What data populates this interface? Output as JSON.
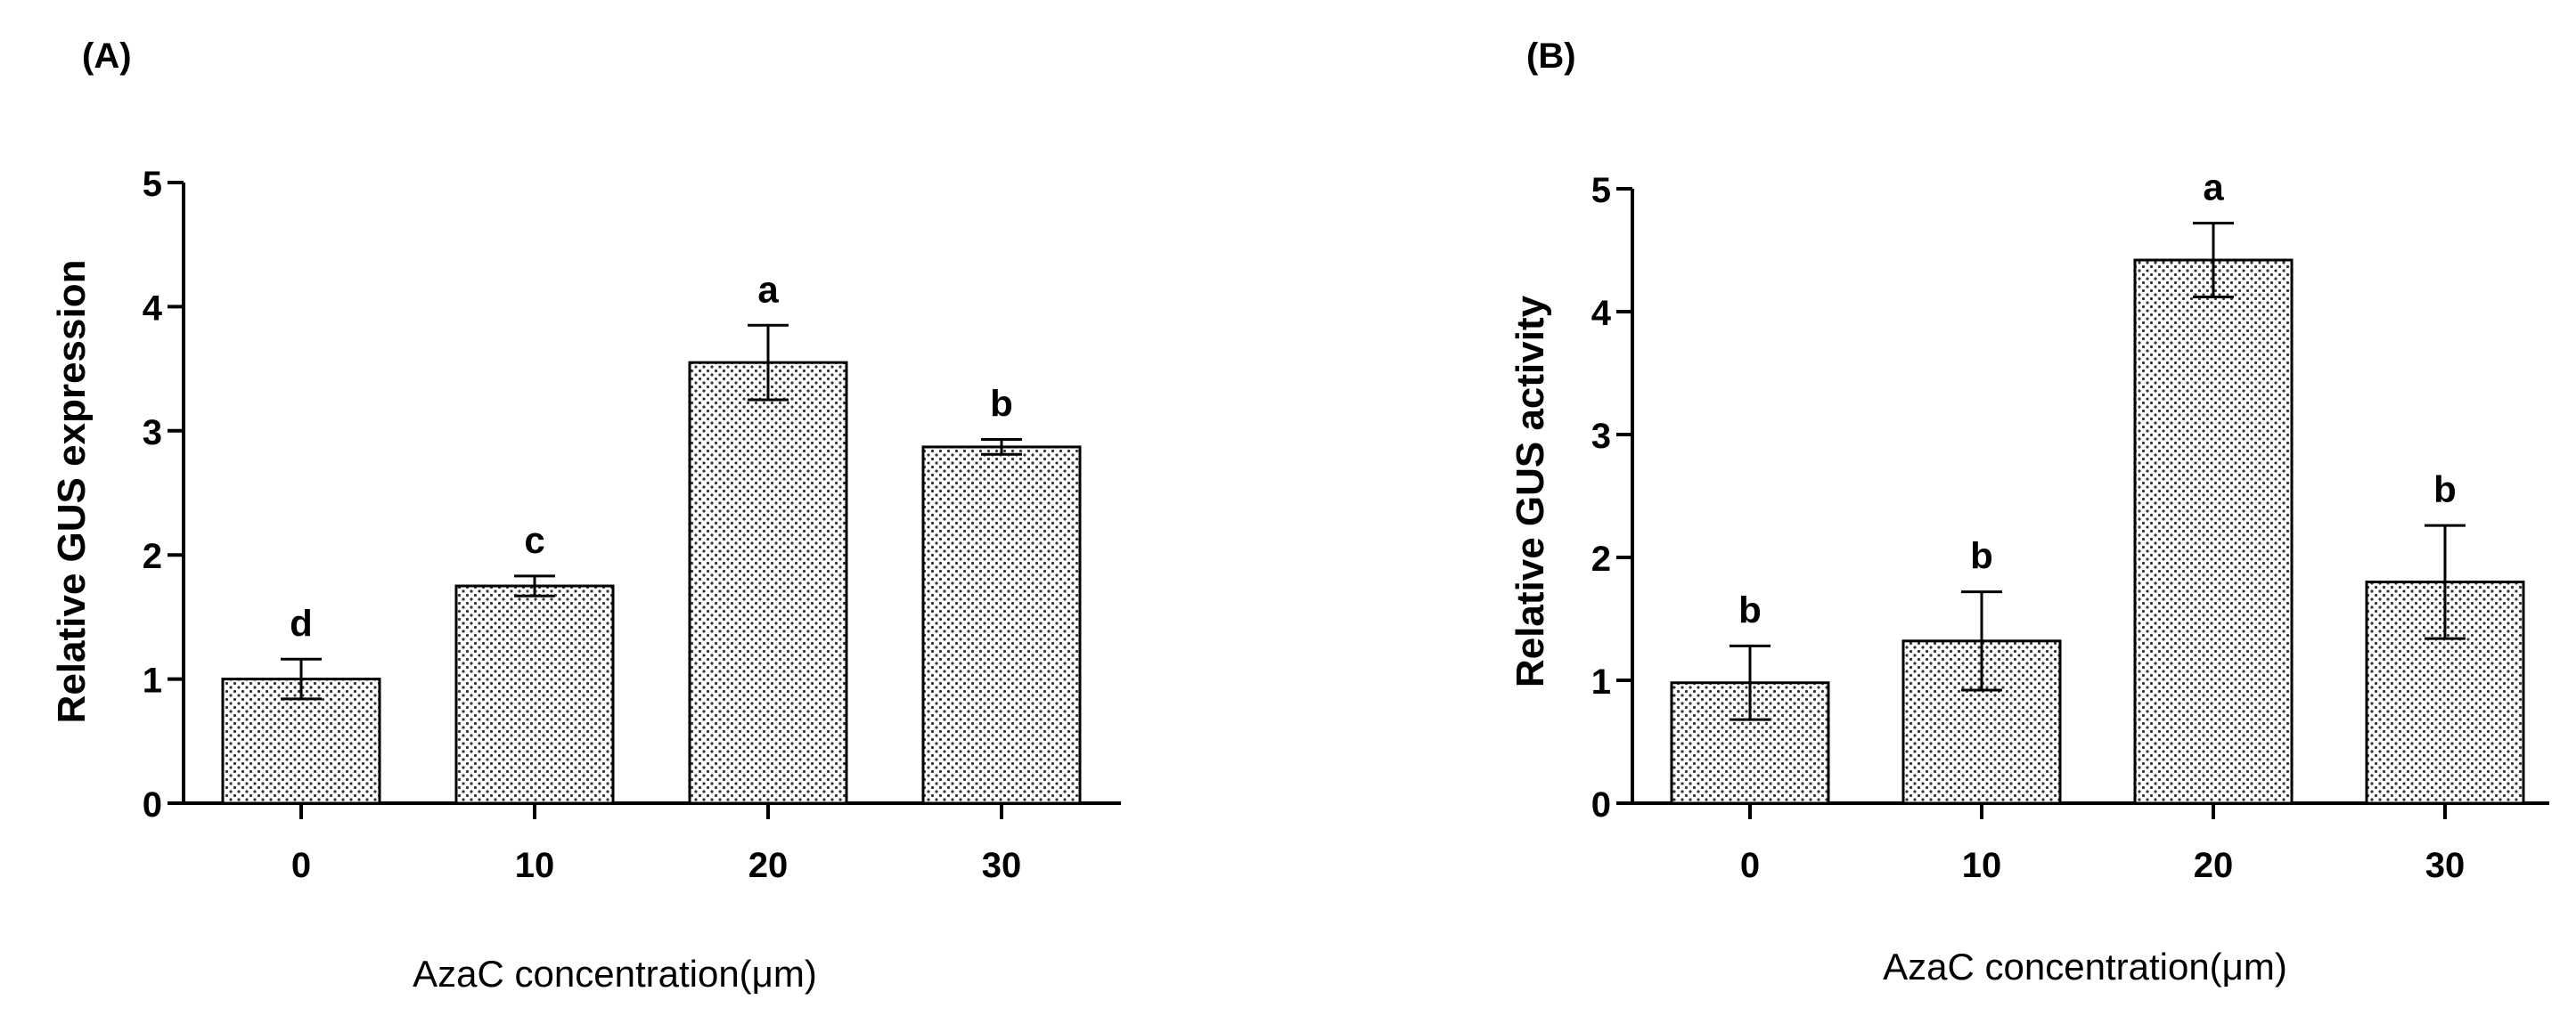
{
  "chart_data": [
    {
      "type": "bar",
      "panel_label": "(A)",
      "categories": [
        "0",
        "10",
        "20",
        "30"
      ],
      "values": [
        1.0,
        1.75,
        3.55,
        2.87
      ],
      "errors": [
        0.16,
        0.08,
        0.3,
        0.06
      ],
      "significance": [
        "d",
        "c",
        "a",
        "b"
      ],
      "xlabel": "AzaC concentration(μm)",
      "ylabel": "Relative GUS expression",
      "ylim": [
        0,
        5
      ],
      "yticks": [
        0,
        1,
        2,
        3,
        4,
        5
      ],
      "grid": false
    },
    {
      "type": "bar",
      "panel_label": "(B)",
      "categories": [
        "0",
        "10",
        "20",
        "30"
      ],
      "values": [
        0.98,
        1.32,
        4.42,
        1.8
      ],
      "errors": [
        0.3,
        0.4,
        0.3,
        0.46
      ],
      "significance": [
        "b",
        "b",
        "a",
        "b"
      ],
      "xlabel": "AzaC concentration(μm)",
      "ylabel": "Relative GUS activity",
      "ylim": [
        0,
        5
      ],
      "yticks": [
        0,
        1,
        2,
        3,
        4,
        5
      ],
      "grid": false
    }
  ]
}
